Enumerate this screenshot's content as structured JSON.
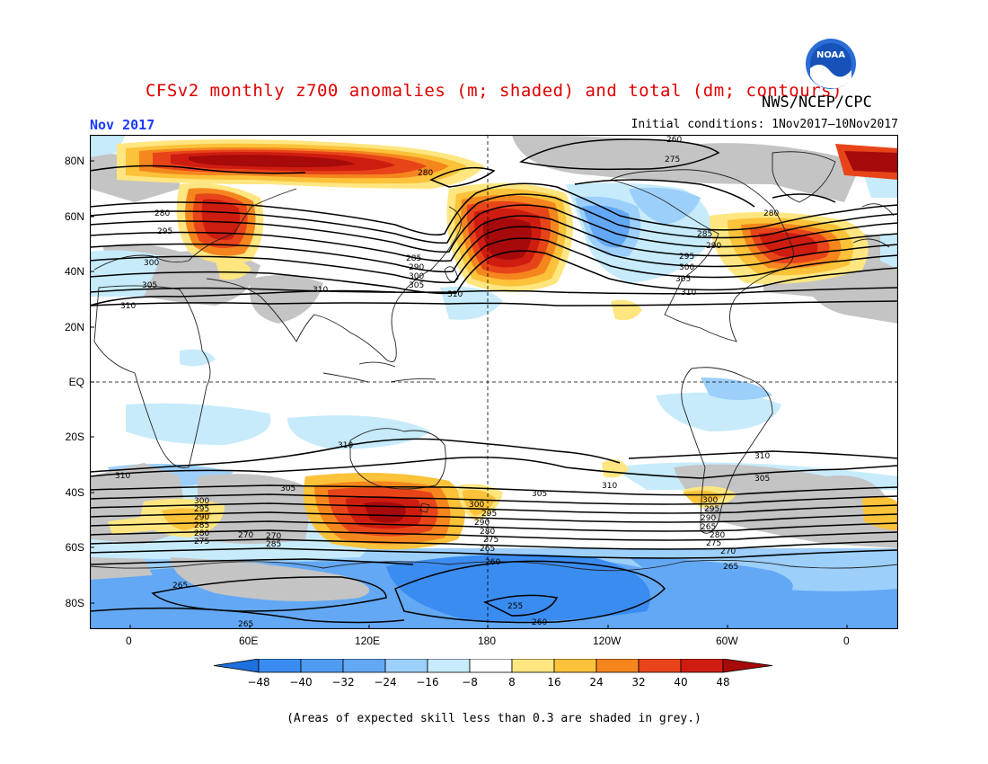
{
  "title": "CFSv2 monthly z700 anomalies (m; shaded) and total (dm; contours)",
  "org": "NWS/NCEP/CPC",
  "logo_text": "NOAA",
  "month": "Nov 2017",
  "initial_conditions": "Initial conditions: 1Nov2017–10Nov2017",
  "footer": "(Areas of expected skill less than 0.3 are shaded in grey.)",
  "lat_labels": [
    "80N",
    "60N",
    "40N",
    "20N",
    "EQ",
    "20S",
    "40S",
    "60S",
    "80S"
  ],
  "lon_labels": [
    "0",
    "60E",
    "120E",
    "180",
    "120W",
    "60W",
    "0"
  ],
  "colorbar_labels": [
    "−48",
    "−40",
    "−32",
    "−24",
    "−16",
    "−8",
    "8",
    "16",
    "24",
    "32",
    "40",
    "48"
  ],
  "colors": {
    "deep_blue": "#1e6fe0",
    "blue": "#3a8cf0",
    "mid_blue": "#62a8f5",
    "light_blue": "#9ccffa",
    "pale_blue": "#c7ebfb",
    "white": "#ffffff",
    "pale_yellow": "#ffe680",
    "yellow": "#fbc23a",
    "orange": "#f5861e",
    "red_orange": "#e8441a",
    "red": "#cf1c10",
    "dark_red": "#a60a0a",
    "grey": "#c4c4c4",
    "title_red": "#e00000",
    "month_blue": "#1a3cff"
  },
  "contour_labels": {
    "nh": [
      "280",
      "295",
      "300",
      "305",
      "310",
      "285",
      "290",
      "260",
      "275",
      "265",
      "270"
    ],
    "sh": [
      "310",
      "305",
      "300",
      "295",
      "290",
      "285",
      "280",
      "275",
      "270",
      "265",
      "260",
      "255"
    ]
  }
}
